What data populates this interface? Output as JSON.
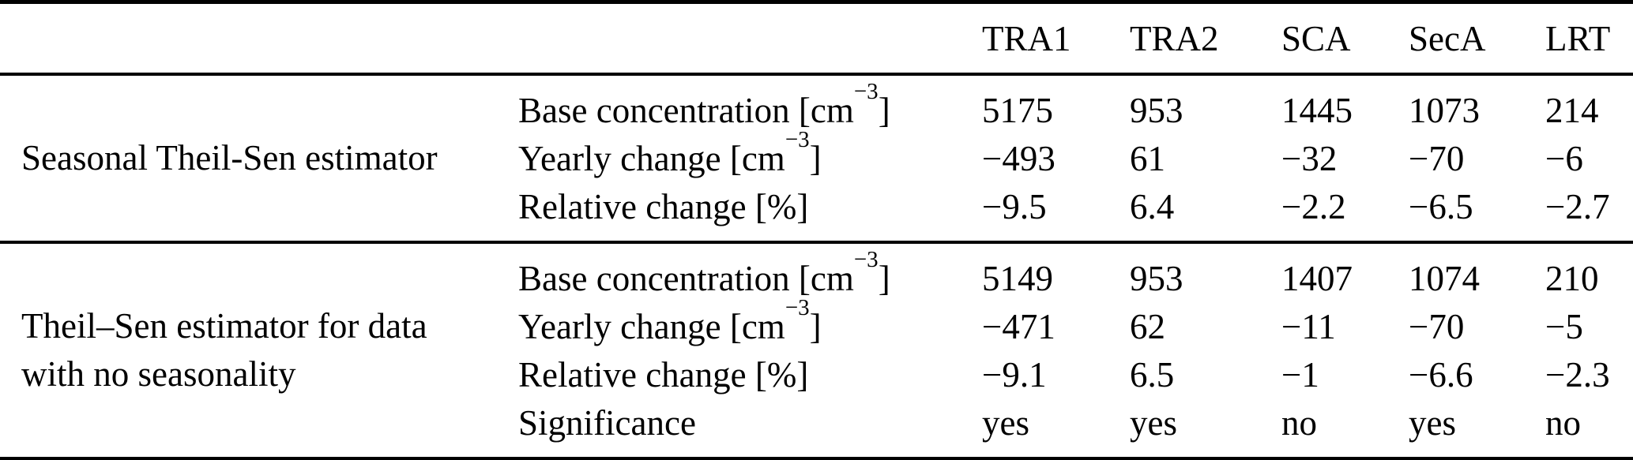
{
  "table": {
    "colors": {
      "text": "#000000",
      "rule": "#000000",
      "background": "#ffffff"
    },
    "columns": [
      "TRA1",
      "TRA2",
      "SCA",
      "SecA",
      "LRT"
    ],
    "groups": [
      {
        "label_lines": [
          "Seasonal Theil-Sen estimator"
        ],
        "rows": [
          {
            "label": "Base concentration [cm",
            "sup": "−3",
            "label_end": "]",
            "values": [
              "5175",
              "953",
              "1445",
              "1073",
              "214"
            ]
          },
          {
            "label": "Yearly change [cm",
            "sup": "−3",
            "label_end": "]",
            "values": [
              "−493",
              "61",
              "−32",
              "−70",
              "−6"
            ]
          },
          {
            "label": "Relative change [%]",
            "sup": "",
            "label_end": "",
            "values": [
              "−9.5",
              "6.4",
              "−2.2",
              "−6.5",
              "−2.7"
            ]
          }
        ]
      },
      {
        "label_lines": [
          "Theil–Sen estimator for data",
          "with no seasonality"
        ],
        "rows": [
          {
            "label": "Base concentration [cm",
            "sup": "−3",
            "label_end": "]",
            "values": [
              "5149",
              "953",
              "1407",
              "1074",
              "210"
            ]
          },
          {
            "label": "Yearly change [cm",
            "sup": "−3",
            "label_end": "]",
            "values": [
              "−471",
              "62",
              "−11",
              "−70",
              "−5"
            ]
          },
          {
            "label": "Relative change [%]",
            "sup": "",
            "label_end": "",
            "values": [
              "−9.1",
              "6.5",
              "−1",
              "−6.6",
              "−2.3"
            ]
          },
          {
            "label": "Significance",
            "sup": "",
            "label_end": "",
            "values": [
              "yes",
              "yes",
              "no",
              "yes",
              "no"
            ]
          }
        ]
      }
    ]
  }
}
